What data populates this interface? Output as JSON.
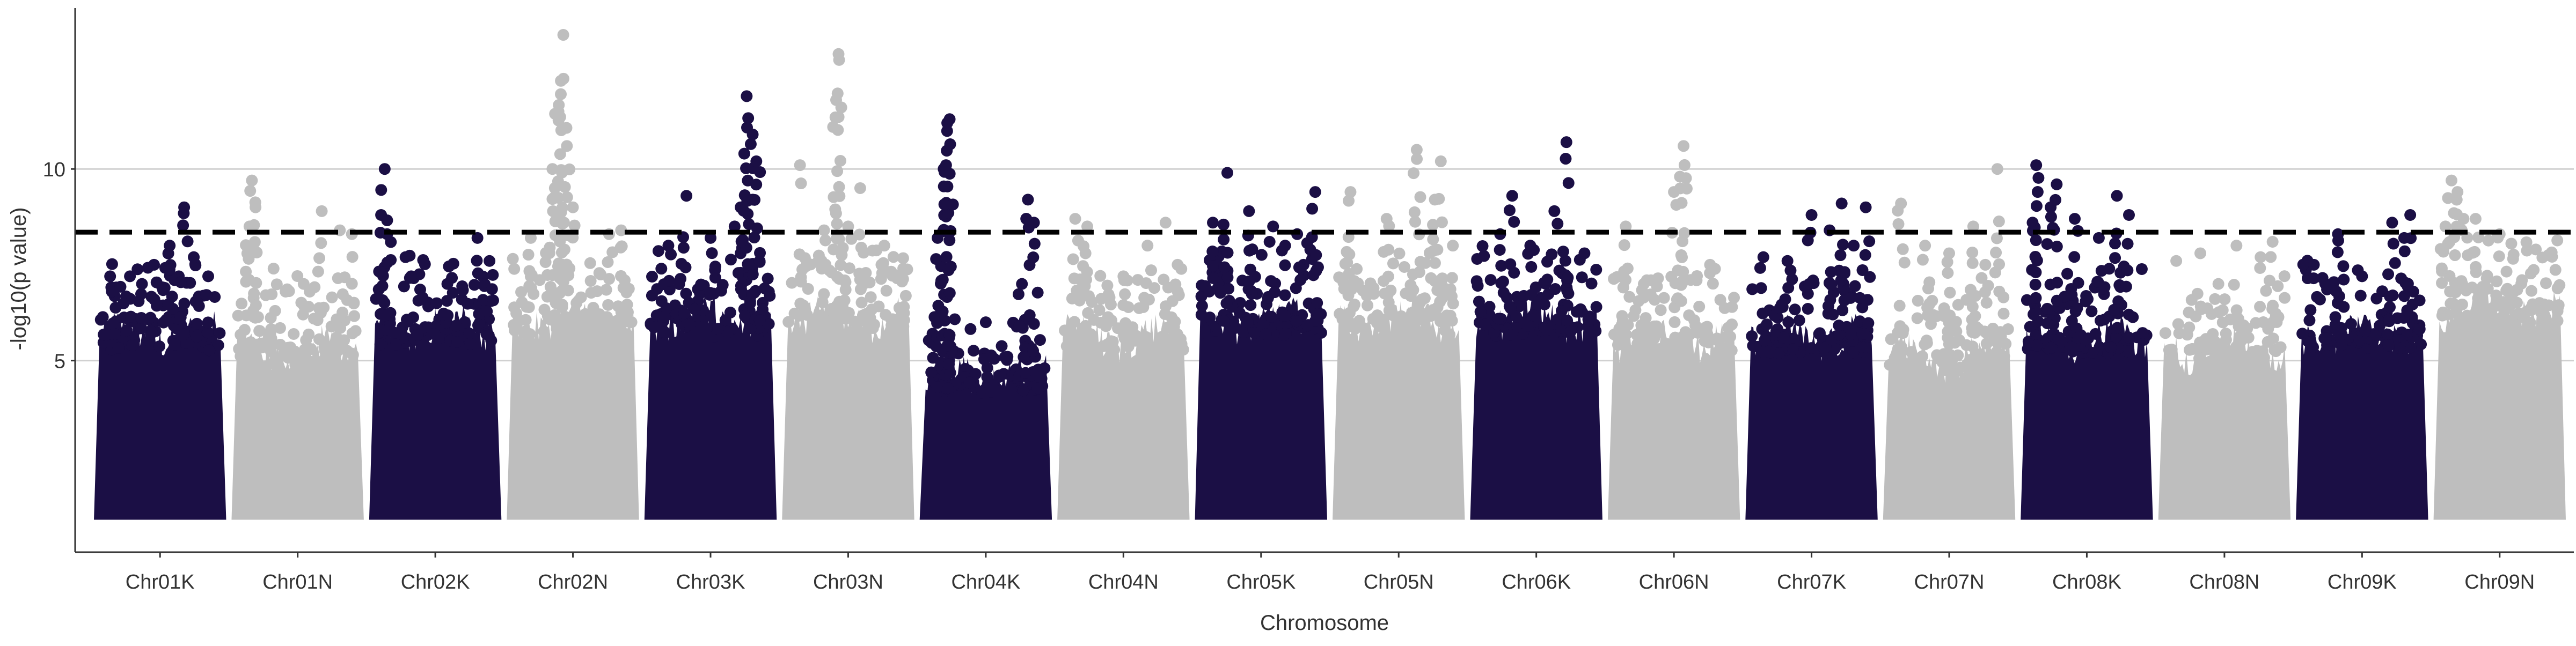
{
  "chart_data": {
    "type": "scatter",
    "subtype": "manhattan",
    "title": "",
    "xlabel": "Chromosome",
    "ylabel": "-log10(p value)",
    "ylim": [
      0,
      14.2
    ],
    "y_ticks": [
      5,
      10
    ],
    "grid": {
      "horizontal": true,
      "vertical": false
    },
    "threshold": {
      "value": 8.35,
      "style": "dashed",
      "color": "#000000"
    },
    "colors": {
      "odd": "#1b0f45",
      "even": "#bebebe"
    },
    "y_floor": 1.0,
    "categories": [
      "Chr01K",
      "Chr01N",
      "Chr02K",
      "Chr02N",
      "Chr03K",
      "Chr03N",
      "Chr04K",
      "Chr04N",
      "Chr05K",
      "Chr05N",
      "Chr06K",
      "Chr06N",
      "Chr07K",
      "Chr07N",
      "Chr08K",
      "Chr08N",
      "Chr09K",
      "Chr09N"
    ],
    "series": [
      {
        "name": "Chr01K",
        "band_top": 5.6,
        "peaks": [
          [
            0.1,
            6.8
          ],
          [
            0.25,
            7.2
          ],
          [
            0.45,
            7.5
          ],
          [
            0.62,
            7.1
          ],
          [
            0.78,
            7.7
          ],
          [
            0.9,
            7.2
          ],
          [
            0.7,
            9.0
          ],
          [
            0.58,
            8.0
          ],
          [
            0.35,
            7.0
          ]
        ]
      },
      {
        "name": "Chr01N",
        "band_top": 5.2,
        "peaks": [
          [
            0.1,
            8.5
          ],
          [
            0.12,
            9.7
          ],
          [
            0.15,
            9.0
          ],
          [
            0.3,
            7.4
          ],
          [
            0.55,
            7.0
          ],
          [
            0.7,
            8.9
          ],
          [
            0.85,
            8.4
          ],
          [
            0.95,
            8.3
          ],
          [
            0.4,
            6.8
          ]
        ]
      },
      {
        "name": "Chr02K",
        "band_top": 5.8,
        "peaks": [
          [
            0.05,
            8.8
          ],
          [
            0.08,
            10.0
          ],
          [
            0.1,
            8.3
          ],
          [
            0.3,
            7.2
          ],
          [
            0.6,
            7.0
          ],
          [
            0.85,
            8.2
          ],
          [
            0.95,
            7.6
          ]
        ]
      },
      {
        "name": "Chr02N",
        "band_top": 6.0,
        "peaks": [
          [
            0.35,
            9.5
          ],
          [
            0.38,
            11.5
          ],
          [
            0.4,
            12.3
          ],
          [
            0.42,
            13.5
          ],
          [
            0.45,
            10.6
          ],
          [
            0.33,
            10.0
          ],
          [
            0.5,
            9.0
          ],
          [
            0.8,
            8.3
          ],
          [
            0.9,
            8.4
          ],
          [
            0.15,
            8.2
          ]
        ]
      },
      {
        "name": "Chr03K",
        "band_top": 6.0,
        "peaks": [
          [
            0.15,
            8.0
          ],
          [
            0.3,
            9.3
          ],
          [
            0.5,
            8.2
          ],
          [
            0.75,
            9.0
          ],
          [
            0.78,
            10.4
          ],
          [
            0.8,
            11.9
          ],
          [
            0.85,
            10.9
          ],
          [
            0.88,
            10.2
          ],
          [
            0.7,
            8.5
          ]
        ]
      },
      {
        "name": "Chr03N",
        "band_top": 6.0,
        "peaks": [
          [
            0.1,
            10.1
          ],
          [
            0.4,
            11.8
          ],
          [
            0.42,
            13.0
          ],
          [
            0.6,
            9.5
          ],
          [
            0.3,
            8.4
          ],
          [
            0.8,
            8.0
          ],
          [
            0.5,
            8.5
          ]
        ]
      },
      {
        "name": "Chr04K",
        "band_top": 4.5,
        "peaks": [
          [
            0.1,
            8.2
          ],
          [
            0.15,
            10.0
          ],
          [
            0.18,
            11.2
          ],
          [
            0.2,
            11.3
          ],
          [
            0.17,
            10.1
          ],
          [
            0.85,
            9.2
          ],
          [
            0.9,
            8.6
          ],
          [
            0.8,
            7.0
          ],
          [
            0.5,
            6.0
          ]
        ]
      },
      {
        "name": "Chr04N",
        "band_top": 5.5,
        "peaks": [
          [
            0.1,
            8.7
          ],
          [
            0.2,
            8.5
          ],
          [
            0.5,
            7.2
          ],
          [
            0.7,
            8.0
          ],
          [
            0.85,
            8.6
          ],
          [
            0.95,
            7.5
          ]
        ]
      },
      {
        "name": "Chr05K",
        "band_top": 6.0,
        "peaks": [
          [
            0.1,
            8.6
          ],
          [
            0.22,
            9.9
          ],
          [
            0.4,
            8.9
          ],
          [
            0.6,
            8.5
          ],
          [
            0.8,
            8.3
          ],
          [
            0.95,
            9.4
          ],
          [
            0.7,
            8.0
          ]
        ]
      },
      {
        "name": "Chr05N",
        "band_top": 6.0,
        "peaks": [
          [
            0.1,
            9.4
          ],
          [
            0.4,
            8.7
          ],
          [
            0.65,
            10.5
          ],
          [
            0.8,
            9.2
          ],
          [
            0.85,
            10.2
          ],
          [
            0.95,
            8.0
          ]
        ]
      },
      {
        "name": "Chr06K",
        "band_top": 6.0,
        "peaks": [
          [
            0.2,
            8.3
          ],
          [
            0.3,
            9.3
          ],
          [
            0.45,
            8.0
          ],
          [
            0.65,
            8.9
          ],
          [
            0.75,
            10.7
          ],
          [
            0.9,
            7.8
          ]
        ]
      },
      {
        "name": "Chr06N",
        "band_top": 5.5,
        "peaks": [
          [
            0.1,
            8.5
          ],
          [
            0.25,
            7.0
          ],
          [
            0.5,
            9.4
          ],
          [
            0.55,
            9.8
          ],
          [
            0.58,
            10.6
          ],
          [
            0.8,
            7.5
          ]
        ]
      },
      {
        "name": "Chr07K",
        "band_top": 5.5,
        "peaks": [
          [
            0.1,
            7.7
          ],
          [
            0.3,
            7.6
          ],
          [
            0.5,
            8.8
          ],
          [
            0.65,
            8.4
          ],
          [
            0.75,
            9.1
          ],
          [
            0.95,
            9.0
          ],
          [
            0.85,
            8.0
          ]
        ]
      },
      {
        "name": "Chr07N",
        "band_top": 5.0,
        "peaks": [
          [
            0.1,
            9.1
          ],
          [
            0.3,
            8.0
          ],
          [
            0.5,
            7.8
          ],
          [
            0.7,
            8.5
          ],
          [
            0.9,
            10.0
          ],
          [
            0.8,
            7.5
          ]
        ]
      },
      {
        "name": "Chr08K",
        "band_top": 5.5,
        "peaks": [
          [
            0.05,
            8.6
          ],
          [
            0.08,
            10.1
          ],
          [
            0.2,
            9.0
          ],
          [
            0.25,
            9.6
          ],
          [
            0.4,
            8.7
          ],
          [
            0.6,
            8.2
          ],
          [
            0.75,
            9.3
          ],
          [
            0.85,
            8.8
          ]
        ]
      },
      {
        "name": "Chr08N",
        "band_top": 5.2,
        "peaks": [
          [
            0.1,
            7.6
          ],
          [
            0.3,
            7.8
          ],
          [
            0.45,
            7.0
          ],
          [
            0.6,
            8.0
          ],
          [
            0.8,
            7.7
          ],
          [
            0.9,
            8.1
          ]
        ]
      },
      {
        "name": "Chr09K",
        "band_top": 5.6,
        "peaks": [
          [
            0.1,
            7.5
          ],
          [
            0.3,
            8.3
          ],
          [
            0.5,
            7.2
          ],
          [
            0.75,
            8.6
          ],
          [
            0.9,
            8.8
          ],
          [
            0.85,
            8.2
          ]
        ]
      },
      {
        "name": "Chr09N",
        "band_top": 6.3,
        "peaks": [
          [
            0.05,
            8.5
          ],
          [
            0.1,
            9.7
          ],
          [
            0.15,
            9.4
          ],
          [
            0.2,
            8.7
          ],
          [
            0.3,
            8.7
          ],
          [
            0.5,
            8.3
          ],
          [
            0.8,
            7.9
          ]
        ]
      }
    ]
  }
}
